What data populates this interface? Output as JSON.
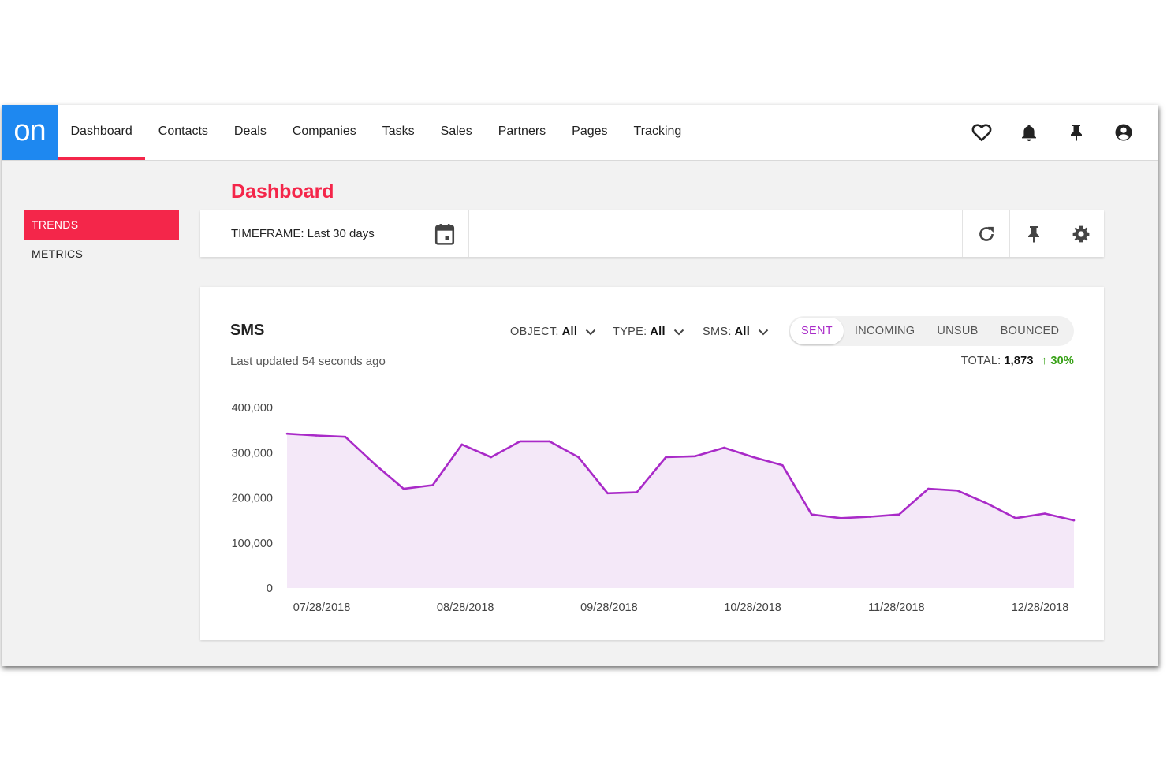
{
  "app": {
    "logo_text": "on",
    "nav": [
      {
        "label": "Dashboard",
        "active": true
      },
      {
        "label": "Contacts"
      },
      {
        "label": "Deals"
      },
      {
        "label": "Companies"
      },
      {
        "label": "Tasks"
      },
      {
        "label": "Sales"
      },
      {
        "label": "Partners"
      },
      {
        "label": "Pages"
      },
      {
        "label": "Tracking"
      }
    ],
    "top_icons": [
      "heart-icon",
      "bell-icon",
      "pin-icon",
      "account-icon"
    ],
    "accent_color": "#f4264a",
    "logo_color": "#1e88f0"
  },
  "sidebar": {
    "items": [
      {
        "label": "TRENDS",
        "active": true
      },
      {
        "label": "METRICS"
      }
    ]
  },
  "page": {
    "title": "Dashboard"
  },
  "toolbar": {
    "timeframe_label": "TIMEFRAME: Last 30 days",
    "icons": [
      "calendar-icon",
      "refresh-icon",
      "pin-icon",
      "settings-icon"
    ]
  },
  "card": {
    "title": "SMS",
    "subtitle": "Last updated 54 seconds ago",
    "filters": [
      {
        "label": "OBJECT:",
        "value": "All"
      },
      {
        "label": "TYPE:",
        "value": "All"
      },
      {
        "label": "SMS:",
        "value": "All"
      }
    ],
    "segments": [
      {
        "label": "SENT",
        "active": true
      },
      {
        "label": "INCOMING"
      },
      {
        "label": "UNSUB"
      },
      {
        "label": "BOUNCED"
      }
    ],
    "total_label": "TOTAL:",
    "total_value": "1,873",
    "change": "↑ 30%",
    "change_color": "#38a117"
  },
  "chart_data": {
    "type": "area",
    "title": "",
    "xlabel": "",
    "ylabel": "",
    "ylim": [
      0,
      400000
    ],
    "y_ticks": [
      0,
      100000,
      200000,
      300000,
      400000
    ],
    "y_tick_labels": [
      "0",
      "100,000",
      "200,000",
      "300,000",
      "400,000"
    ],
    "x_tick_labels": [
      "07/28/2018",
      "08/28/2018",
      "09/28/2018",
      "10/28/2018",
      "11/28/2018",
      "12/28/2018"
    ],
    "line_color": "#a92ac8",
    "fill_color": "#f4e8f8",
    "grid": false,
    "series": [
      {
        "values": [
          342000,
          338000,
          335000,
          275000,
          220000,
          228000,
          318000,
          290000,
          325000,
          325000,
          290000,
          210000,
          212000,
          290000,
          292000,
          311000,
          290000,
          272000,
          163000,
          155000,
          158000,
          163000,
          220000,
          216000,
          188000,
          155000,
          165000,
          150000
        ]
      }
    ]
  }
}
